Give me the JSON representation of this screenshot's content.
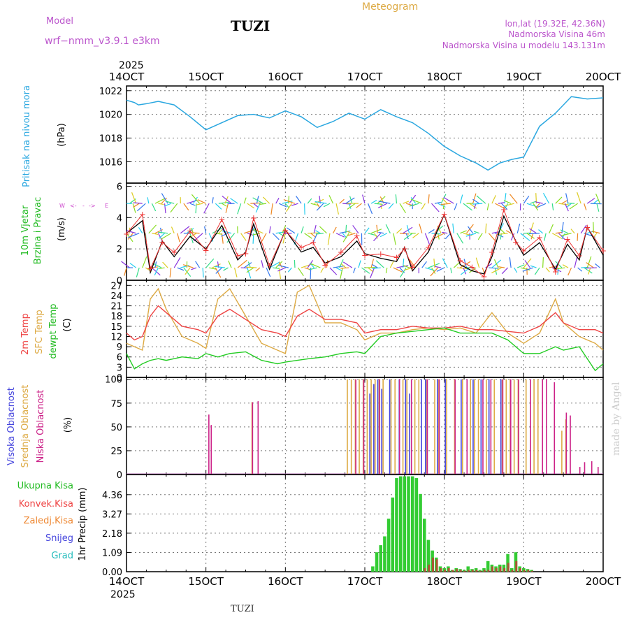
{
  "header": {
    "model_label": "Model",
    "model_name": "wrf−nmm_v3.9.1 e3km",
    "station": "TUZI",
    "title": "Meteogram",
    "location": "lon,lat (19.32E, 42.36N)",
    "elevation": "Nadmorska Visina 46m",
    "model_elevation": "Nadmorska Visina u modelu 143.131m"
  },
  "time_axis": {
    "year": "2025",
    "ticks": [
      "14OCT",
      "15OCT",
      "16OCT",
      "17OCT",
      "18OCT",
      "19OCT",
      "20OCT"
    ],
    "footer_station": "TUZI"
  },
  "watermark": "made by Angel",
  "colors": {
    "pressure": "#2aa7e0",
    "wind_label": "#22bb22",
    "wind_dir": "#cc44cc",
    "temp2m": "#ee4444",
    "sfc": "#ddaa44",
    "dewpt": "#22cc22",
    "cloud_high": "#4444dd",
    "cloud_mid": "#ddaa44",
    "cloud_low": "#cc2288",
    "rain_total": "#33cc33",
    "rain_conv": "#ee4444",
    "rain_frz": "#ee8833",
    "snow": "#4444dd",
    "grad": "#22bbbb"
  },
  "chart_data": [
    {
      "type": "line",
      "name": "pressure",
      "ylabel_rot": "Pritisak na nivou mora",
      "unit": "(hPa)",
      "yticks": [
        "1022",
        "1020",
        "1018",
        "1016"
      ],
      "ylim": [
        1014.2,
        1022.4
      ],
      "x_days": [
        0,
        0.1,
        0.15,
        0.25,
        0.4,
        0.6,
        0.8,
        1.0,
        1.2,
        1.4,
        1.6,
        1.8,
        2.0,
        2.2,
        2.4,
        2.6,
        2.8,
        3.0,
        3.2,
        3.4,
        3.6,
        3.8,
        4.0,
        4.2,
        4.4,
        4.55,
        4.7,
        4.85,
        5.0,
        5.2,
        5.4,
        5.6,
        5.8,
        6.0
      ],
      "values": [
        1021.2,
        1021,
        1020.8,
        1020.9,
        1021.1,
        1020.8,
        1019.8,
        1018.7,
        1019.3,
        1019.9,
        1020,
        1019.7,
        1020.3,
        1019.8,
        1018.9,
        1019.4,
        1020.1,
        1019.6,
        1020.4,
        1019.8,
        1019.3,
        1018.4,
        1017.3,
        1016.5,
        1015.9,
        1015.3,
        1015.9,
        1016.2,
        1016.4,
        1019,
        1020.1,
        1021.5,
        1021.3,
        1021.4
      ]
    },
    {
      "type": "line",
      "name": "wind",
      "ylabel_rot1": "10m Vjetar",
      "ylabel_rot2": "Brzina i Pravac",
      "unit": "(m/s)",
      "compass": [
        "W",
        "<-",
        "-",
        "->",
        "E"
      ],
      "yticks": [
        "6",
        "4",
        "2",
        "0"
      ],
      "ylim": [
        0,
        6.2
      ],
      "x_days": [
        0,
        0.2,
        0.3,
        0.45,
        0.6,
        0.8,
        1.0,
        1.2,
        1.4,
        1.5,
        1.6,
        1.8,
        2.0,
        2.2,
        2.35,
        2.5,
        2.7,
        2.9,
        3.0,
        3.2,
        3.4,
        3.5,
        3.6,
        3.8,
        4.0,
        4.2,
        4.35,
        4.5,
        4.6,
        4.75,
        4.9,
        5.0,
        5.2,
        5.4,
        5.55,
        5.7,
        5.8,
        6.0
      ],
      "speed": [
        3,
        3.8,
        0.5,
        2.5,
        1.5,
        2.8,
        2.0,
        3.5,
        1.3,
        1.8,
        3.6,
        0.7,
        3.2,
        1.8,
        2.1,
        1.1,
        1.5,
        2.5,
        1.7,
        1.4,
        1.2,
        2.1,
        0.6,
        1.8,
        4.2,
        1.0,
        0.6,
        0.4,
        1.5,
        4.1,
        2.5,
        1.6,
        2.4,
        0.7,
        2.3,
        1.3,
        3.4,
        1.6
      ]
    },
    {
      "type": "line",
      "name": "temperature",
      "ylabel_rot1": "2m Temp",
      "ylabel_rot2": "SFC Temp",
      "ylabel_rot3": "dewpt Temp",
      "unit": "(C)",
      "yticks": [
        "27",
        "24",
        "21",
        "18",
        "15",
        "12",
        "9",
        "6",
        "3",
        "0"
      ],
      "ylim": [
        0,
        28.5
      ],
      "x_days": [
        0,
        0.1,
        0.2,
        0.3,
        0.4,
        0.5,
        0.7,
        0.9,
        1.0,
        1.15,
        1.3,
        1.5,
        1.7,
        1.9,
        2.0,
        2.15,
        2.3,
        2.5,
        2.7,
        2.9,
        3.0,
        3.2,
        3.4,
        3.6,
        3.8,
        4.0,
        4.2,
        4.4,
        4.6,
        4.8,
        5.0,
        5.2,
        5.4,
        5.5,
        5.7,
        5.9,
        6.0
      ],
      "t2m": [
        13,
        11,
        12,
        18,
        21,
        19,
        15,
        14,
        13,
        18,
        20,
        17,
        14,
        13,
        12,
        18,
        20,
        17,
        17,
        16,
        13,
        14,
        14,
        15,
        14.5,
        14.5,
        15,
        14,
        14,
        13.5,
        13,
        15,
        19,
        16,
        14,
        14,
        13
      ],
      "sfc": [
        10,
        9,
        8,
        23,
        26,
        20,
        12,
        10,
        8.5,
        23,
        26,
        18,
        10,
        8,
        7,
        25,
        27,
        16,
        16,
        14,
        11,
        13,
        13,
        14,
        14.5,
        14,
        14.5,
        13,
        19,
        13,
        10,
        13,
        23,
        16,
        12,
        10,
        8
      ],
      "dewpt": [
        7,
        2.5,
        4,
        5,
        5.5,
        5,
        6,
        5.5,
        7,
        6,
        7,
        7.5,
        5,
        4,
        4.5,
        5,
        5.5,
        6,
        7,
        7.5,
        7,
        12,
        13,
        13.5,
        14,
        14.5,
        13,
        13,
        13,
        11,
        7,
        7,
        9,
        8,
        9,
        2,
        4
      ]
    },
    {
      "type": "bar",
      "name": "cloud_cover",
      "ylabel_rot1": "Visoka Oblacnost",
      "ylabel_rot2": "Srednja Oblacnost",
      "ylabel_rot3": "Niska Oblacnost",
      "unit": "(%)",
      "yticks": [
        "100",
        "75",
        "50",
        "25",
        "0"
      ],
      "ylim": [
        0,
        102
      ],
      "low_days": [
        1.05,
        1.08,
        1.6,
        1.67,
        2.9,
        3.0,
        3.2,
        3.45,
        3.6,
        3.8,
        3.95,
        4.15,
        4.3,
        4.5,
        4.6,
        4.75,
        4.85,
        4.95,
        5.1,
        5.25,
        5.3,
        5.4,
        5.55,
        5.6,
        5.72,
        5.78,
        5.87,
        5.95
      ],
      "low_vals": [
        63,
        52,
        76,
        77,
        100,
        100,
        100,
        100,
        100,
        100,
        100,
        100,
        100,
        100,
        100,
        100,
        100,
        100,
        100,
        100,
        100,
        97,
        65,
        62,
        8,
        13,
        14,
        8
      ],
      "mid_days": [
        1.58,
        2.78,
        2.83,
        2.88,
        2.93,
        2.98,
        3.03,
        3.08,
        3.13,
        3.18,
        3.23,
        3.33,
        3.38,
        3.48,
        3.53,
        3.63,
        3.68,
        3.78,
        3.88,
        3.93,
        4.03,
        4.13,
        4.23,
        4.33,
        4.38,
        4.43,
        4.53,
        4.63,
        4.73,
        4.78,
        4.83,
        4.88,
        4.93,
        5.03,
        5.13,
        5.18,
        5.48,
        5.53
      ],
      "mid_vals": [
        76,
        100,
        100,
        100,
        100,
        100,
        100,
        100,
        100,
        100,
        100,
        100,
        100,
        100,
        100,
        100,
        100,
        100,
        100,
        100,
        100,
        100,
        100,
        100,
        100,
        100,
        100,
        100,
        100,
        100,
        100,
        100,
        100,
        100,
        100,
        100,
        46,
        58
      ],
      "high_days": [
        3.05,
        3.1,
        3.15,
        3.2,
        3.3,
        3.42,
        3.5,
        3.55,
        3.7,
        3.75,
        3.9,
        4.0,
        4.2,
        4.35,
        4.45,
        4.55,
        4.7
      ],
      "high_vals": [
        85,
        95,
        100,
        90,
        100,
        100,
        100,
        85,
        100,
        100,
        100,
        100,
        100,
        100,
        100,
        100,
        100
      ]
    },
    {
      "type": "bar",
      "name": "precipitation",
      "legend": [
        "Ukupna Kisa",
        "Konvek.Kisa",
        "Zaledj.Kisa",
        "Snijeg",
        "Grad"
      ],
      "ylabel_rot": "1hr Precip (mm)",
      "yticks": [
        "4.36",
        "3.27",
        "2.18",
        "1.09",
        "0.00"
      ],
      "ylim": [
        0,
        5.5
      ],
      "days": [
        3.1,
        3.15,
        3.2,
        3.25,
        3.3,
        3.35,
        3.4,
        3.45,
        3.5,
        3.55,
        3.6,
        3.65,
        3.7,
        3.75,
        3.8,
        3.85,
        3.9,
        3.95,
        4.0,
        4.05,
        4.1,
        4.15,
        4.2,
        4.25,
        4.3,
        4.35,
        4.4,
        4.45,
        4.5,
        4.55,
        4.6,
        4.65,
        4.7,
        4.75,
        4.8,
        4.85,
        4.9,
        4.95,
        5.0,
        5.05,
        5.1
      ],
      "total": [
        0.3,
        1.1,
        1.5,
        2.0,
        3.0,
        4.2,
        5.3,
        5.4,
        5.4,
        5.4,
        5.4,
        5.3,
        4.4,
        3.0,
        1.8,
        1.2,
        0.8,
        0.3,
        0.2,
        0.3,
        0.1,
        0.2,
        0.15,
        0.1,
        0.3,
        0.15,
        0.2,
        0.1,
        0.2,
        0.6,
        0.4,
        0.3,
        0.4,
        0.4,
        1.0,
        0.2,
        1.1,
        0.3,
        0.2,
        0.15,
        0.1
      ],
      "conv": [
        0,
        0,
        0,
        0,
        0,
        0,
        0,
        0,
        0,
        0,
        0,
        0,
        0,
        0.2,
        0.4,
        0.8,
        0.7,
        0.2,
        0.1,
        0.2,
        0.1,
        0.15,
        0.1,
        0.05,
        0.1,
        0.1,
        0.1,
        0.05,
        0.1,
        0.1,
        0.3,
        0.2,
        0.3,
        0.2,
        0.5,
        0.1,
        0.6,
        0.2,
        0.1,
        0.1,
        0.05
      ]
    }
  ]
}
